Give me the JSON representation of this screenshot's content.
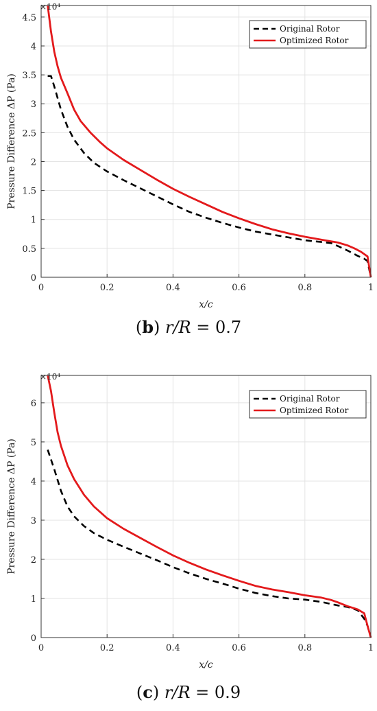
{
  "charts": [
    {
      "caption": {
        "open": "(",
        "letter": "b",
        "close": ")",
        "var": "r/R",
        "rest": " = 0.7"
      },
      "chart_data": {
        "type": "line",
        "xlabel": "x/c",
        "ylabel": "Pressure Difference ΔP (Pa)",
        "y_multiplier_label": "×10⁴",
        "xlim": [
          0,
          1
        ],
        "ylim": [
          0,
          47000
        ],
        "x_ticks": [
          0,
          0.2,
          0.4,
          0.6,
          0.8,
          1
        ],
        "x_tick_labels": [
          "0",
          "0.2",
          "0.4",
          "0.6",
          "0.8",
          "1"
        ],
        "y_ticks": [
          0,
          5000,
          10000,
          15000,
          20000,
          25000,
          30000,
          35000,
          40000,
          45000
        ],
        "y_tick_labels": [
          "0",
          "0.5",
          "1",
          "1.5",
          "2",
          "2.5",
          "3",
          "3.5",
          "4",
          "4.5"
        ],
        "grid": true,
        "legend_position": "top-right",
        "series": [
          {
            "name": "Original Rotor",
            "color": "#000000",
            "style": "dashed",
            "x": [
              0.02,
              0.03,
              0.04,
              0.06,
              0.08,
              0.1,
              0.13,
              0.16,
              0.2,
              0.25,
              0.3,
              0.35,
              0.4,
              0.45,
              0.5,
              0.55,
              0.6,
              0.65,
              0.7,
              0.75,
              0.8,
              0.85,
              0.88,
              0.9,
              0.93,
              0.96,
              0.98,
              0.99,
              1.0
            ],
            "y": [
              34800,
              34800,
              33000,
              29000,
              26000,
              23800,
              21500,
              19800,
              18300,
              16800,
              15400,
              14000,
              12600,
              11300,
              10300,
              9400,
              8600,
              7900,
              7400,
              6900,
              6400,
              6100,
              5900,
              5400,
              4600,
              3700,
              3200,
              2800,
              0
            ]
          },
          {
            "name": "Optimized Rotor",
            "color": "#e31a1c",
            "style": "solid",
            "x": [
              0.02,
              0.03,
              0.04,
              0.05,
              0.06,
              0.08,
              0.1,
              0.12,
              0.15,
              0.18,
              0.2,
              0.25,
              0.3,
              0.35,
              0.4,
              0.45,
              0.5,
              0.55,
              0.6,
              0.65,
              0.7,
              0.75,
              0.8,
              0.85,
              0.9,
              0.93,
              0.95,
              0.97,
              0.99,
              1.0
            ],
            "y": [
              47000,
              42500,
              39000,
              36500,
              34500,
              31800,
              29000,
              27000,
              25000,
              23300,
              22300,
              20300,
              18600,
              16900,
              15300,
              13900,
              12600,
              11300,
              10200,
              9200,
              8300,
              7600,
              7000,
              6500,
              6000,
              5500,
              5000,
              4400,
              3600,
              0
            ]
          }
        ]
      }
    },
    {
      "caption": {
        "open": "(",
        "letter": "c",
        "close": ")",
        "var": "r/R",
        "rest": " = 0.9"
      },
      "chart_data": {
        "type": "line",
        "xlabel": "x/c",
        "ylabel": "Pressure Difference ΔP (Pa)",
        "y_multiplier_label": "×10⁴",
        "xlim": [
          0,
          1
        ],
        "ylim": [
          0,
          67000
        ],
        "x_ticks": [
          0,
          0.2,
          0.4,
          0.6,
          0.8,
          1
        ],
        "x_tick_labels": [
          "0",
          "0.2",
          "0.4",
          "0.6",
          "0.8",
          "1"
        ],
        "y_ticks": [
          0,
          10000,
          20000,
          30000,
          40000,
          50000,
          60000
        ],
        "y_tick_labels": [
          "0",
          "1",
          "2",
          "3",
          "4",
          "5",
          "6"
        ],
        "grid": true,
        "legend_position": "top-right",
        "series": [
          {
            "name": "Original Rotor",
            "color": "#000000",
            "style": "dashed",
            "x": [
              0.02,
              0.04,
              0.06,
              0.08,
              0.1,
              0.13,
              0.16,
              0.2,
              0.25,
              0.3,
              0.35,
              0.4,
              0.45,
              0.5,
              0.55,
              0.6,
              0.65,
              0.7,
              0.75,
              0.8,
              0.85,
              0.9,
              0.93,
              0.96,
              0.98,
              0.99,
              1.0
            ],
            "y": [
              48000,
              43000,
              37500,
              33500,
              31000,
              28500,
              26700,
              25000,
              23200,
              21500,
              19800,
              18000,
              16400,
              15000,
              13800,
              12500,
              11400,
              10600,
              10000,
              9700,
              9100,
              8200,
              7800,
              7000,
              4800,
              3000,
              0
            ]
          },
          {
            "name": "Optimized Rotor",
            "color": "#e31a1c",
            "style": "solid",
            "x": [
              0.02,
              0.03,
              0.04,
              0.05,
              0.06,
              0.08,
              0.1,
              0.13,
              0.16,
              0.2,
              0.25,
              0.3,
              0.35,
              0.4,
              0.45,
              0.5,
              0.55,
              0.6,
              0.65,
              0.7,
              0.75,
              0.8,
              0.85,
              0.88,
              0.9,
              0.93,
              0.96,
              0.98,
              0.99,
              1.0
            ],
            "y": [
              67000,
              63000,
              57500,
              52500,
              49000,
              44000,
              40500,
              36500,
              33500,
              30500,
              27800,
              25500,
              23200,
              21000,
              19100,
              17400,
              15900,
              14500,
              13200,
              12300,
              11600,
              10800,
              10200,
              9600,
              9000,
              8000,
              7200,
              6200,
              3000,
              0
            ]
          }
        ]
      }
    }
  ]
}
